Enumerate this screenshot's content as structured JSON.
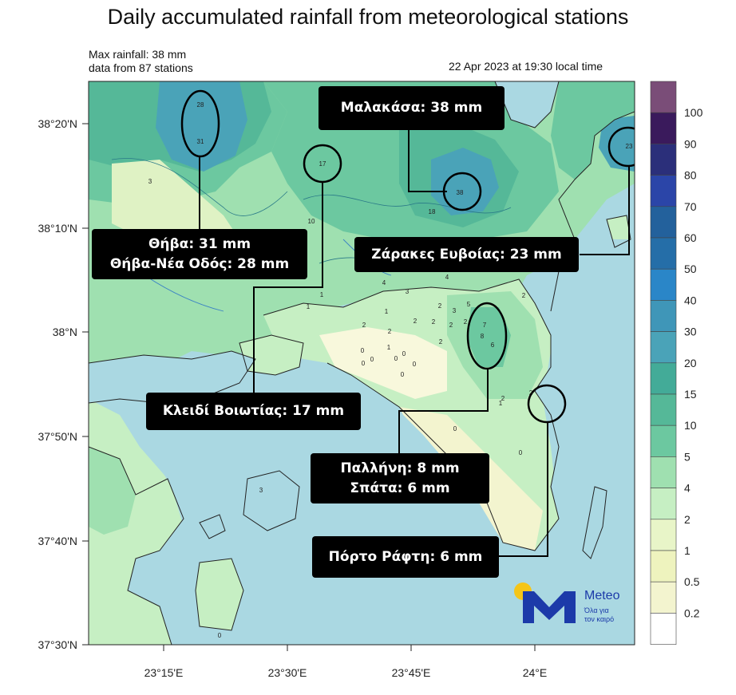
{
  "header": {
    "title": "Daily accumulated rainfall from meteorological stations",
    "max_line": "Max rainfall: 38 mm",
    "stations_line": "data from 87 stations",
    "timestamp": "22 Apr 2023 at 19:30 local time"
  },
  "axes": {
    "lat_labels": [
      "38°20'N",
      "38°10'N",
      "38°N",
      "37°50'N",
      "37°40'N",
      "37°30'N"
    ],
    "lon_labels": [
      "23°15'E",
      "23°30'E",
      "23°45'E",
      "24°E"
    ]
  },
  "colorbar": {
    "labels": [
      "100",
      "90",
      "80",
      "70",
      "60",
      "50",
      "40",
      "30",
      "20",
      "15",
      "10",
      "5",
      "4",
      "2",
      "1",
      "0.5",
      "0.2"
    ],
    "colors": [
      "#7a4d78",
      "#3a1a5c",
      "#2b2f7a",
      "#2b45a8",
      "#23619c",
      "#256ea8",
      "#2a86c8",
      "#3f96b8",
      "#4aa3b8",
      "#43ab98",
      "#55b898",
      "#6cc8a0",
      "#9fe0b0",
      "#c6efc3",
      "#e8f5c8",
      "#eef3be",
      "#f3f4cf",
      "#ffffff"
    ]
  },
  "map_colors": {
    "sea": "#aad8e2",
    "rain_light": "#dff2c4",
    "rain_2": "#c6efc3",
    "rain_5": "#9fe0b0",
    "rain_10": "#6cc8a0",
    "rain_15": "#55b898",
    "rain_20": "#4aa3b8",
    "rain_30": "#3f96b8",
    "none": "#f8f8dc"
  },
  "stations": [
    "28",
    "31",
    "17",
    "38",
    "23",
    "3",
    "10",
    "18",
    "4",
    "3",
    "4",
    "1",
    "1",
    "2",
    "2",
    "2",
    "1",
    "2",
    "2",
    "2",
    "3",
    "2",
    "5",
    "7",
    "8",
    "6",
    "2",
    "0",
    "0",
    "0",
    "0",
    "0",
    "0",
    "0",
    "1",
    "2",
    "0",
    "0",
    "3",
    "0",
    "2",
    "2",
    "1"
  ],
  "callouts": {
    "malakasa": "Μαλακάσα: 38 mm",
    "thiva": [
      "Θήβα: 31 mm",
      "Θήβα-Νέα Οδός: 28 mm"
    ],
    "zarakes": "Ζάρακες Ευβοίας: 23 mm",
    "kleidi": "Κλειδί Βοιωτίας: 17 mm",
    "pallini": [
      "Παλλήνη: 8 mm",
      "Σπάτα: 6 mm"
    ],
    "porto_rafti": "Πόρτο Ράφτη: 6 mm"
  },
  "logo": {
    "name": "Meteo",
    "tagline_1": "Όλα για",
    "tagline_2": "τον καιρό"
  }
}
